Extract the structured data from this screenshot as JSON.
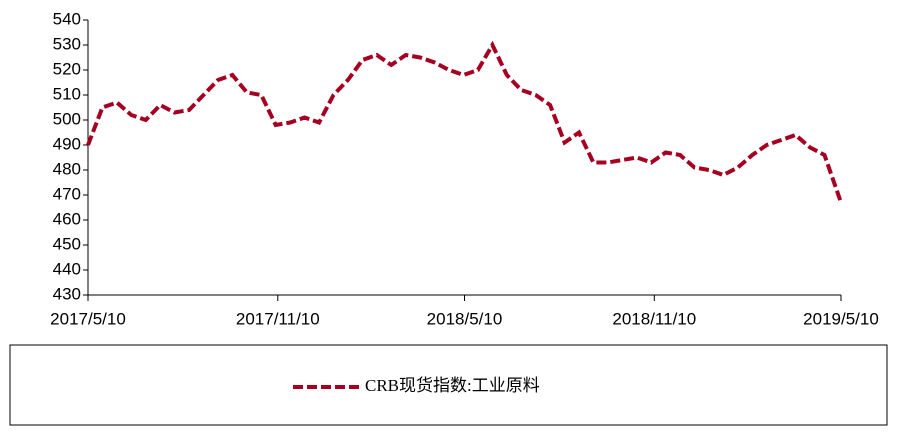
{
  "chart_data": {
    "type": "line",
    "x": [
      "2017/5/10",
      "2017/5/24",
      "2017/6/7",
      "2017/6/21",
      "2017/7/5",
      "2017/7/19",
      "2017/8/2",
      "2017/8/16",
      "2017/8/30",
      "2017/9/13",
      "2017/9/27",
      "2017/10/11",
      "2017/10/25",
      "2017/11/8",
      "2017/11/22",
      "2017/12/6",
      "2017/12/20",
      "2018/1/3",
      "2018/1/17",
      "2018/1/31",
      "2018/2/14",
      "2018/2/28",
      "2018/3/14",
      "2018/3/28",
      "2018/4/11",
      "2018/4/25",
      "2018/5/9",
      "2018/5/23",
      "2018/6/6",
      "2018/6/20",
      "2018/7/4",
      "2018/7/18",
      "2018/8/1",
      "2018/8/15",
      "2018/8/29",
      "2018/9/12",
      "2018/9/26",
      "2018/10/10",
      "2018/10/24",
      "2018/11/7",
      "2018/11/21",
      "2018/12/5",
      "2018/12/19",
      "2019/1/2",
      "2019/1/16",
      "2019/1/30",
      "2019/2/13",
      "2019/2/27",
      "2019/3/13",
      "2019/3/27",
      "2019/4/10",
      "2019/4/24",
      "2019/5/10"
    ],
    "series": [
      {
        "name": "CRB现货指数:工业原料",
        "color": "#a50021",
        "values": [
          490,
          505,
          507,
          502,
          500,
          506,
          503,
          504,
          510,
          516,
          518,
          511,
          510,
          498,
          499,
          501,
          499,
          510,
          516,
          524,
          526,
          522,
          526,
          525,
          523,
          520,
          518,
          520,
          530,
          518,
          512,
          510,
          506,
          491,
          495,
          483,
          483,
          484,
          485,
          483,
          487,
          486,
          481,
          480,
          478,
          481,
          486,
          490,
          492,
          494,
          489,
          486,
          467
        ]
      }
    ],
    "xlim": [
      "2017/5/10",
      "2019/5/10"
    ],
    "xticks": [
      "2017/5/10",
      "2017/11/10",
      "2018/5/10",
      "2018/11/10",
      "2019/5/10"
    ],
    "ylim": [
      430,
      540
    ],
    "yticks": [
      430,
      440,
      450,
      460,
      470,
      480,
      490,
      500,
      510,
      520,
      530,
      540
    ],
    "legend": "bottom"
  }
}
